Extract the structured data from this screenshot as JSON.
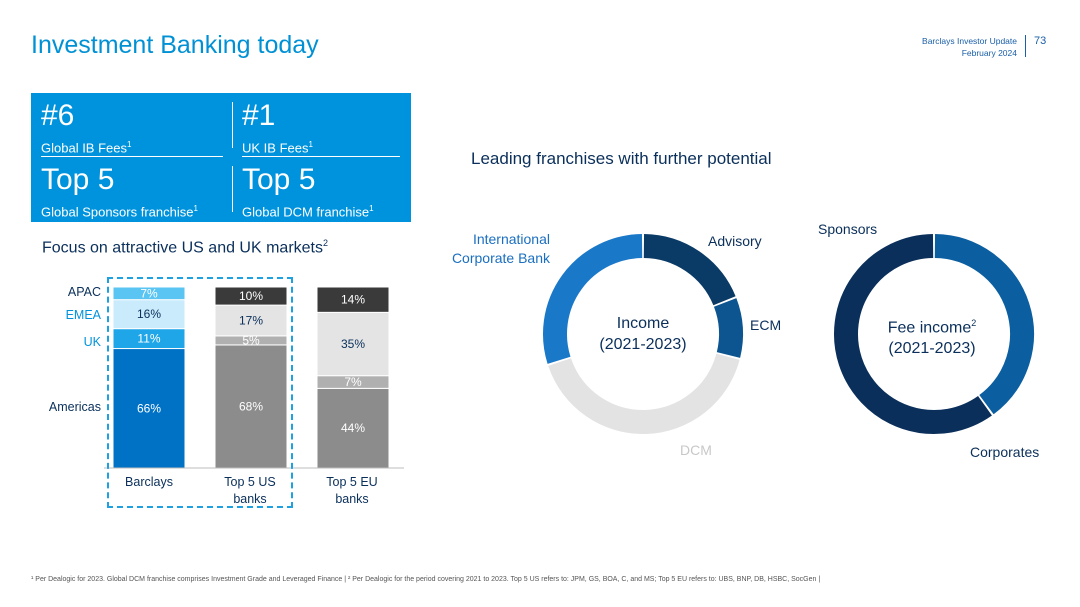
{
  "header": {
    "title": "Investment Banking today",
    "doc_line1": "Barclays Investor Update",
    "doc_line2": "February 2024",
    "page_number": "73"
  },
  "rankings": [
    {
      "rank": "#6",
      "label": "Global IB Fees",
      "note": "1"
    },
    {
      "rank": "#1",
      "label": "UK IB Fees",
      "note": "1"
    },
    {
      "rank": "Top 5",
      "label": "Global Sponsors franchise",
      "note": "1"
    },
    {
      "rank": "Top 5",
      "label": "Global DCM franchise",
      "note": "1"
    }
  ],
  "focus_title": "Focus on attractive US and UK markets",
  "focus_note": "2",
  "leading_title": "Leading franchises with further potential",
  "donut_income": {
    "line1": "Income",
    "line2": "(2021-2023)"
  },
  "donut_fee": {
    "line1": "Fee income",
    "note": "2",
    "line2": "(2021-2023)"
  },
  "footer": "¹ Per Dealogic for 2023. Global DCM franchise comprises Investment Grade and Leveraged Finance | ² Per Dealogic for the period covering 2021 to 2023. Top 5 US refers to: JPM, GS, BOA, C, and MS; Top 5 EU refers to: UBS, BNP, DB, HSBC, SocGen |",
  "colors": {
    "brand_blue": "#0093dd",
    "navy": "#0a2f5a",
    "americas_blue": "#0072c6",
    "uk_blue": "#1fa6e8",
    "emea_light": "#c9ebfb",
    "apac_blue": "#5ac4f2",
    "dark_grey": "#3a3a3a",
    "mid_grey": "#8c8c8c",
    "light_grey": "#e1e1e1"
  },
  "chart_data": [
    {
      "type": "bar",
      "stacked": true,
      "categories": [
        "Barclays",
        "Top 5 US banks",
        "Top 5 EU banks"
      ],
      "series": [
        {
          "name": "Americas",
          "values": [
            66,
            68,
            44
          ]
        },
        {
          "name": "UK",
          "values": [
            11,
            5,
            7
          ]
        },
        {
          "name": "EMEA",
          "values": [
            16,
            17,
            35
          ]
        },
        {
          "name": "APAC",
          "values": [
            7,
            10,
            14
          ]
        }
      ],
      "data_labels": [
        [
          "66%",
          "11%",
          "16%",
          "7%"
        ],
        [
          "68%",
          "5%",
          "17%",
          "10%"
        ],
        [
          "44%",
          "7%",
          "35%",
          "14%"
        ]
      ],
      "ylim": [
        0,
        100
      ],
      "legend": "left"
    },
    {
      "type": "pie",
      "donut": true,
      "center_label": "Income (2021-2023)",
      "labels": [
        "Advisory",
        "ECM",
        "DCM",
        "International Corporate Bank"
      ],
      "values": [
        19,
        10,
        41,
        30
      ]
    },
    {
      "type": "pie",
      "donut": true,
      "center_label": "Fee income (2021-2023)",
      "labels": [
        "Sponsors",
        "Corporates"
      ],
      "values": [
        40,
        60
      ]
    }
  ]
}
